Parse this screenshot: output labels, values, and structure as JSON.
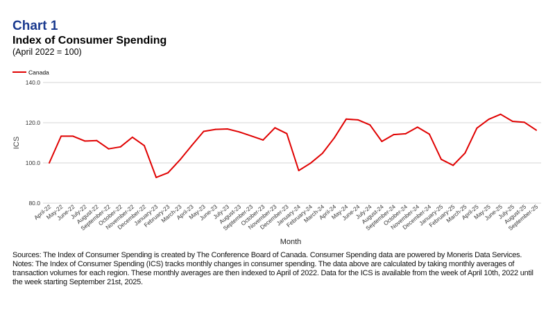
{
  "header": {
    "chart_number": "Chart 1",
    "title": "Index of Consumer Spending",
    "subtitle": "(April 2022 = 100)"
  },
  "chart_data": {
    "type": "line",
    "xlabel": "Month",
    "ylabel": "ICS",
    "ylim": [
      80,
      140
    ],
    "yticks": [
      "80.0",
      "100.0",
      "120.0",
      "140.0"
    ],
    "grid": true,
    "legend_position": "top-left",
    "categories": [
      "April-22",
      "May-22",
      "June-22",
      "July-22",
      "August-22",
      "September-22",
      "October-22",
      "November-22",
      "December-22",
      "January-23",
      "February-23",
      "March-23",
      "April-23",
      "May-23",
      "June-23",
      "July-23",
      "August-23",
      "September-23",
      "October-23",
      "November-23",
      "December-23",
      "January-24",
      "February-24",
      "March-24",
      "April-24",
      "May-24",
      "June-24",
      "July-24",
      "August-24",
      "September-24",
      "October-24",
      "November-24",
      "December-24",
      "January-25",
      "February-25",
      "March-25",
      "April-25",
      "May-25",
      "June-25",
      "July-25",
      "August-25",
      "September-25"
    ],
    "series": [
      {
        "name": "Canada",
        "color": "#e00000",
        "values": [
          100,
          113.3,
          113.3,
          110.9,
          111.1,
          107,
          108,
          112.8,
          108.6,
          92.8,
          95.1,
          101.5,
          108.7,
          115.7,
          116.7,
          116.9,
          115.4,
          113.4,
          111.4,
          117.5,
          114.6,
          96.2,
          99.9,
          104.8,
          112.5,
          121.8,
          121.4,
          118.9,
          110.7,
          114.1,
          114.5,
          117.8,
          114.3,
          101.8,
          98.8,
          104.9,
          117.3,
          121.7,
          124.2,
          120.7,
          120.2,
          116.3
        ]
      }
    ]
  },
  "notes": [
    "Sources: The Index of Consumer Spending is created by The Conference Board of Canada. Consumer Spending data are powered by Moneris Data Services.",
    "Notes: The Index of Consumer Spending (ICS) tracks monthly changes in consumer spending. The data above are calculated by taking monthly averages of",
    "transaction volumes for each region. These monthly averages are then indexed to April of 2022. Data for the ICS is available from the week of April 10th, 2022 until",
    "the week starting September 21st, 2025."
  ]
}
